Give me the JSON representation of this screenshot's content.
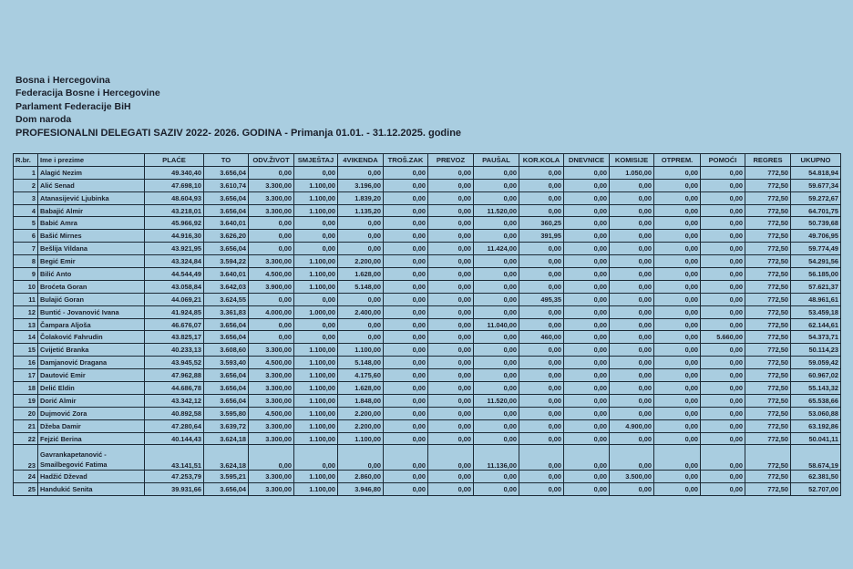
{
  "header": {
    "line1": "Bosna i Hercegovina",
    "line2": "Federacija Bosne i Hercegovine",
    "line3": "Parlament Federacije BiH",
    "line4": "Dom naroda",
    "title": "PROFESIONALNI DELEGATI SAZIV 2022- 2026. GODINA - Primanja 01.01. - 31.12.2025. godine"
  },
  "table": {
    "columns": [
      "R.br.",
      "Ime i prezime",
      "PLAĆE",
      "TO",
      "ODV.ŽIVOT",
      "SMJEŠTAJ",
      "4VIKENDA",
      "TROŠ.ZAK",
      "PREVOZ",
      "PAUŠAL",
      "KOR.KOLA",
      "DNEVNICE",
      "KOMISIJE",
      "OTPREM.",
      "POMOĆI",
      "REGRES",
      "UKUPNO"
    ],
    "rows": [
      [
        "1",
        "Alagić Nezim",
        "49.340,40",
        "3.656,04",
        "0,00",
        "0,00",
        "0,00",
        "0,00",
        "0,00",
        "0,00",
        "0,00",
        "0,00",
        "1.050,00",
        "0,00",
        "0,00",
        "772,50",
        "54.818,94"
      ],
      [
        "2",
        "Alić Senad",
        "47.698,10",
        "3.610,74",
        "3.300,00",
        "1.100,00",
        "3.196,00",
        "0,00",
        "0,00",
        "0,00",
        "0,00",
        "0,00",
        "0,00",
        "0,00",
        "0,00",
        "772,50",
        "59.677,34"
      ],
      [
        "3",
        "Atanasijević Ljubinka",
        "48.604,93",
        "3.656,04",
        "3.300,00",
        "1.100,00",
        "1.839,20",
        "0,00",
        "0,00",
        "0,00",
        "0,00",
        "0,00",
        "0,00",
        "0,00",
        "0,00",
        "772,50",
        "59.272,67"
      ],
      [
        "4",
        "Babajić Almir",
        "43.218,01",
        "3.656,04",
        "3.300,00",
        "1.100,00",
        "1.135,20",
        "0,00",
        "0,00",
        "11.520,00",
        "0,00",
        "0,00",
        "0,00",
        "0,00",
        "0,00",
        "772,50",
        "64.701,75"
      ],
      [
        "5",
        "Babić Amra",
        "45.966,92",
        "3.640,01",
        "0,00",
        "0,00",
        "0,00",
        "0,00",
        "0,00",
        "0,00",
        "360,25",
        "0,00",
        "0,00",
        "0,00",
        "0,00",
        "772,50",
        "50.739,68"
      ],
      [
        "6",
        "Bašić Mirnes",
        "44.916,30",
        "3.626,20",
        "0,00",
        "0,00",
        "0,00",
        "0,00",
        "0,00",
        "0,00",
        "391,95",
        "0,00",
        "0,00",
        "0,00",
        "0,00",
        "772,50",
        "49.706,95"
      ],
      [
        "7",
        "Bešlija Vildana",
        "43.921,95",
        "3.656,04",
        "0,00",
        "0,00",
        "0,00",
        "0,00",
        "0,00",
        "11.424,00",
        "0,00",
        "0,00",
        "0,00",
        "0,00",
        "0,00",
        "772,50",
        "59.774,49"
      ],
      [
        "8",
        "Begić Emir",
        "43.324,84",
        "3.594,22",
        "3.300,00",
        "1.100,00",
        "2.200,00",
        "0,00",
        "0,00",
        "0,00",
        "0,00",
        "0,00",
        "0,00",
        "0,00",
        "0,00",
        "772,50",
        "54.291,56"
      ],
      [
        "9",
        "Bilić Anto",
        "44.544,49",
        "3.640,01",
        "4.500,00",
        "1.100,00",
        "1.628,00",
        "0,00",
        "0,00",
        "0,00",
        "0,00",
        "0,00",
        "0,00",
        "0,00",
        "0,00",
        "772,50",
        "56.185,00"
      ],
      [
        "10",
        "Broćeta Goran",
        "43.058,84",
        "3.642,03",
        "3.900,00",
        "1.100,00",
        "5.148,00",
        "0,00",
        "0,00",
        "0,00",
        "0,00",
        "0,00",
        "0,00",
        "0,00",
        "0,00",
        "772,50",
        "57.621,37"
      ],
      [
        "11",
        "Bulajić Goran",
        "44.069,21",
        "3.624,55",
        "0,00",
        "0,00",
        "0,00",
        "0,00",
        "0,00",
        "0,00",
        "495,35",
        "0,00",
        "0,00",
        "0,00",
        "0,00",
        "772,50",
        "48.961,61"
      ],
      [
        "12",
        "Buntić - Jovanović Ivana",
        "41.924,85",
        "3.361,83",
        "4.000,00",
        "1.000,00",
        "2.400,00",
        "0,00",
        "0,00",
        "0,00",
        "0,00",
        "0,00",
        "0,00",
        "0,00",
        "0,00",
        "772,50",
        "53.459,18"
      ],
      [
        "13",
        "Čampara Aljoša",
        "46.676,07",
        "3.656,04",
        "0,00",
        "0,00",
        "0,00",
        "0,00",
        "0,00",
        "11.040,00",
        "0,00",
        "0,00",
        "0,00",
        "0,00",
        "0,00",
        "772,50",
        "62.144,61"
      ],
      [
        "14",
        "Čolaković Fahrudin",
        "43.825,17",
        "3.656,04",
        "0,00",
        "0,00",
        "0,00",
        "0,00",
        "0,00",
        "0,00",
        "460,00",
        "0,00",
        "0,00",
        "0,00",
        "5.660,00",
        "772,50",
        "54.373,71"
      ],
      [
        "15",
        "Cvijetić Branka",
        "40.233,13",
        "3.608,60",
        "3.300,00",
        "1.100,00",
        "1.100,00",
        "0,00",
        "0,00",
        "0,00",
        "0,00",
        "0,00",
        "0,00",
        "0,00",
        "0,00",
        "772,50",
        "50.114,23"
      ],
      [
        "16",
        "Damjanović Dragana",
        "43.945,52",
        "3.593,40",
        "4.500,00",
        "1.100,00",
        "5.148,00",
        "0,00",
        "0,00",
        "0,00",
        "0,00",
        "0,00",
        "0,00",
        "0,00",
        "0,00",
        "772,50",
        "59.059,42"
      ],
      [
        "17",
        "Dautović Emir",
        "47.962,88",
        "3.656,04",
        "3.300,00",
        "1.100,00",
        "4.175,60",
        "0,00",
        "0,00",
        "0,00",
        "0,00",
        "0,00",
        "0,00",
        "0,00",
        "0,00",
        "772,50",
        "60.967,02"
      ],
      [
        "18",
        "Delić Eldin",
        "44.686,78",
        "3.656,04",
        "3.300,00",
        "1.100,00",
        "1.628,00",
        "0,00",
        "0,00",
        "0,00",
        "0,00",
        "0,00",
        "0,00",
        "0,00",
        "0,00",
        "772,50",
        "55.143,32"
      ],
      [
        "19",
        "Dorić Almir",
        "43.342,12",
        "3.656,04",
        "3.300,00",
        "1.100,00",
        "1.848,00",
        "0,00",
        "0,00",
        "11.520,00",
        "0,00",
        "0,00",
        "0,00",
        "0,00",
        "0,00",
        "772,50",
        "65.538,66"
      ],
      [
        "20",
        "Dujmović Zora",
        "40.892,58",
        "3.595,80",
        "4.500,00",
        "1.100,00",
        "2.200,00",
        "0,00",
        "0,00",
        "0,00",
        "0,00",
        "0,00",
        "0,00",
        "0,00",
        "0,00",
        "772,50",
        "53.060,88"
      ],
      [
        "21",
        "Džeba Damir",
        "47.280,64",
        "3.639,72",
        "3.300,00",
        "1.100,00",
        "2.200,00",
        "0,00",
        "0,00",
        "0,00",
        "0,00",
        "0,00",
        "4.900,00",
        "0,00",
        "0,00",
        "772,50",
        "63.192,86"
      ],
      [
        "22",
        "Fejzić Berina",
        "40.144,43",
        "3.624,18",
        "3.300,00",
        "1.100,00",
        "1.100,00",
        "0,00",
        "0,00",
        "0,00",
        "0,00",
        "0,00",
        "0,00",
        "0,00",
        "0,00",
        "772,50",
        "50.041,11"
      ],
      [
        "23",
        "Gavrankapetanović - Smailbegović Fatima",
        "43.141,51",
        "3.624,18",
        "0,00",
        "0,00",
        "0,00",
        "0,00",
        "0,00",
        "11.136,00",
        "0,00",
        "0,00",
        "0,00",
        "0,00",
        "0,00",
        "772,50",
        "58.674,19"
      ],
      [
        "24",
        "Hadžić Dževad",
        "47.253,79",
        "3.595,21",
        "3.300,00",
        "1.100,00",
        "2.860,00",
        "0,00",
        "0,00",
        "0,00",
        "0,00",
        "0,00",
        "3.500,00",
        "0,00",
        "0,00",
        "772,50",
        "62.381,50"
      ],
      [
        "25",
        "Handukić Senita",
        "39.931,66",
        "3.656,04",
        "3.300,00",
        "1.100,00",
        "3.946,80",
        "0,00",
        "0,00",
        "0,00",
        "0,00",
        "0,00",
        "0,00",
        "0,00",
        "0,00",
        "772,50",
        "52.707,00"
      ]
    ]
  }
}
